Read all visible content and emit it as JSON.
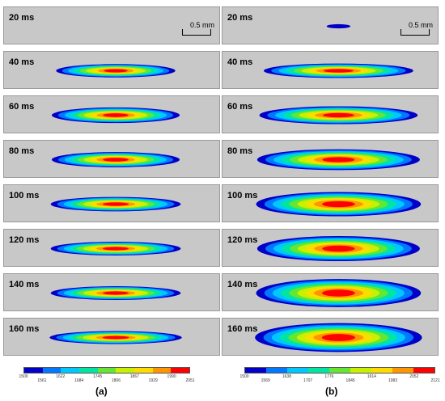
{
  "column_a": {
    "caption": "(a)",
    "panels": [
      {
        "time": "20 ms",
        "pool": null,
        "scale_bar": "0.5 mm"
      },
      {
        "time": "40 ms",
        "pool": {
          "cx": 0.515,
          "rx": 0.275,
          "ry": 0.175
        }
      },
      {
        "time": "60 ms",
        "pool": {
          "cx": 0.515,
          "rx": 0.295,
          "ry": 0.205
        }
      },
      {
        "time": "80 ms",
        "pool": {
          "cx": 0.515,
          "rx": 0.295,
          "ry": 0.2
        }
      },
      {
        "time": "100 ms",
        "pool": {
          "cx": 0.515,
          "rx": 0.3,
          "ry": 0.19
        }
      },
      {
        "time": "120 ms",
        "pool": {
          "cx": 0.515,
          "rx": 0.3,
          "ry": 0.18
        }
      },
      {
        "time": "140 ms",
        "pool": {
          "cx": 0.515,
          "rx": 0.3,
          "ry": 0.18
        }
      },
      {
        "time": "160 ms",
        "pool": {
          "cx": 0.515,
          "rx": 0.305,
          "ry": 0.17
        }
      }
    ],
    "colorbar_ticks": [
      "1500",
      "1561",
      "1622",
      "1684",
      "1745",
      "1806",
      "1867",
      "1929",
      "1990",
      "2051"
    ]
  },
  "column_b": {
    "caption": "(b)",
    "panels": [
      {
        "time": "20 ms",
        "pool": {
          "cx": 0.535,
          "rx": 0.055,
          "ry": 0.055,
          "single": true
        },
        "scale_bar": "0.5 mm"
      },
      {
        "time": "40 ms",
        "pool": {
          "cx": 0.535,
          "rx": 0.345,
          "ry": 0.19
        }
      },
      {
        "time": "60 ms",
        "pool": {
          "cx": 0.535,
          "rx": 0.365,
          "ry": 0.235
        }
      },
      {
        "time": "80 ms",
        "pool": {
          "cx": 0.535,
          "rx": 0.375,
          "ry": 0.275
        }
      },
      {
        "time": "100 ms",
        "pool": {
          "cx": 0.535,
          "rx": 0.38,
          "ry": 0.32
        }
      },
      {
        "time": "120 ms",
        "pool": {
          "cx": 0.535,
          "rx": 0.375,
          "ry": 0.33
        }
      },
      {
        "time": "140 ms",
        "pool": {
          "cx": 0.535,
          "rx": 0.38,
          "ry": 0.37
        }
      },
      {
        "time": "160 ms",
        "pool": {
          "cx": 0.535,
          "rx": 0.385,
          "ry": 0.38
        }
      }
    ],
    "colorbar_ticks": [
      "1500",
      "1569",
      "1638",
      "1707",
      "1776",
      "1845",
      "1914",
      "1983",
      "2052",
      "2121"
    ]
  },
  "palette": [
    "#0000c8",
    "#0078ff",
    "#00c8ff",
    "#00e6a0",
    "#64e632",
    "#c8f000",
    "#ffdc00",
    "#ff9600",
    "#ff0000"
  ]
}
